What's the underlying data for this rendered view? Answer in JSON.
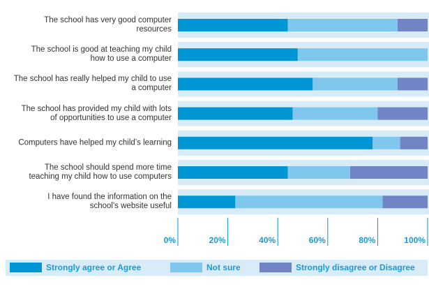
{
  "chart_data": {
    "type": "stacked-barh",
    "categories": [
      "The school has very good computer\nresources",
      "The school is good at teaching my child\nhow to use a computer",
      "The school has really helped my child to use\na computer",
      "The school has provided my child with lots\nof opportunities to use a computer",
      "Computers have helped my child’s learning",
      "The school should spend more time\nteaching my child how to use computers",
      "I have found the information on the\nschool's website useful"
    ],
    "series": [
      {
        "name": "Strongly agree  or Agree",
        "color": "#0096d6",
        "values": [
          44,
          48,
          54,
          46,
          78,
          44,
          23
        ]
      },
      {
        "name": "Not sure",
        "color": "#80c7ee",
        "values": [
          44,
          52,
          34,
          34,
          11,
          25,
          59
        ]
      },
      {
        "name": "Strongly disagree or Disagree",
        "color": "#7084c6",
        "values": [
          12,
          0,
          12,
          20,
          11,
          31,
          18
        ]
      }
    ],
    "xlim": [
      0,
      100
    ],
    "xticks": [
      {
        "value": 0,
        "label": "0%"
      },
      {
        "value": 20,
        "label": "20%"
      },
      {
        "value": 40,
        "label": "40%"
      },
      {
        "value": 60,
        "label": "60%"
      },
      {
        "value": 80,
        "label": "80%"
      },
      {
        "value": 100,
        "label": "100%"
      }
    ],
    "legend": "bottom"
  }
}
